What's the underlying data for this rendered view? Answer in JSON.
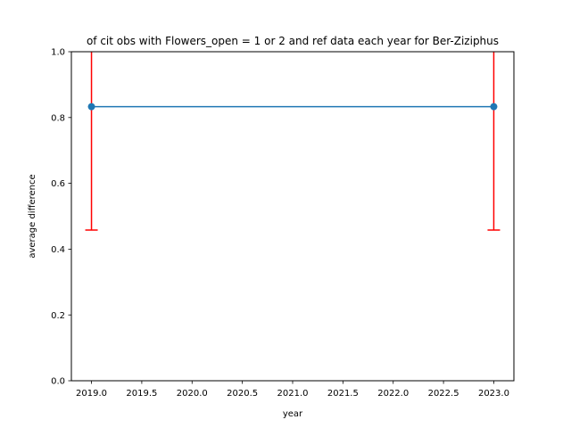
{
  "chart_data": {
    "type": "line",
    "title": "of cit obs with Flowers_open = 1 or 2 and ref data each year for Ber-Ziziphus",
    "xlabel": "year",
    "ylabel": "average difference",
    "xlim": [
      2018.8,
      2023.2
    ],
    "ylim": [
      0.0,
      1.0
    ],
    "xticks": [
      2019.0,
      2019.5,
      2020.0,
      2020.5,
      2021.0,
      2021.5,
      2022.0,
      2022.5,
      2023.0
    ],
    "xtick_labels": [
      "2019.0",
      "2019.5",
      "2020.0",
      "2020.5",
      "2021.0",
      "2021.5",
      "2022.0",
      "2022.5",
      "2023.0"
    ],
    "yticks": [
      0.0,
      0.2,
      0.4,
      0.6,
      0.8,
      1.0
    ],
    "ytick_labels": [
      "0.0",
      "0.2",
      "0.4",
      "0.6",
      "0.8",
      "1.0"
    ],
    "grid": false,
    "series": [
      {
        "x": [
          2019,
          2023
        ],
        "values": [
          0.833,
          0.833
        ],
        "error_lower": [
          0.458,
          0.458
        ],
        "error_upper": [
          1.208,
          1.208
        ],
        "color": "#1f77b4",
        "error_color": "#ff0000",
        "marker": "circle"
      }
    ]
  }
}
